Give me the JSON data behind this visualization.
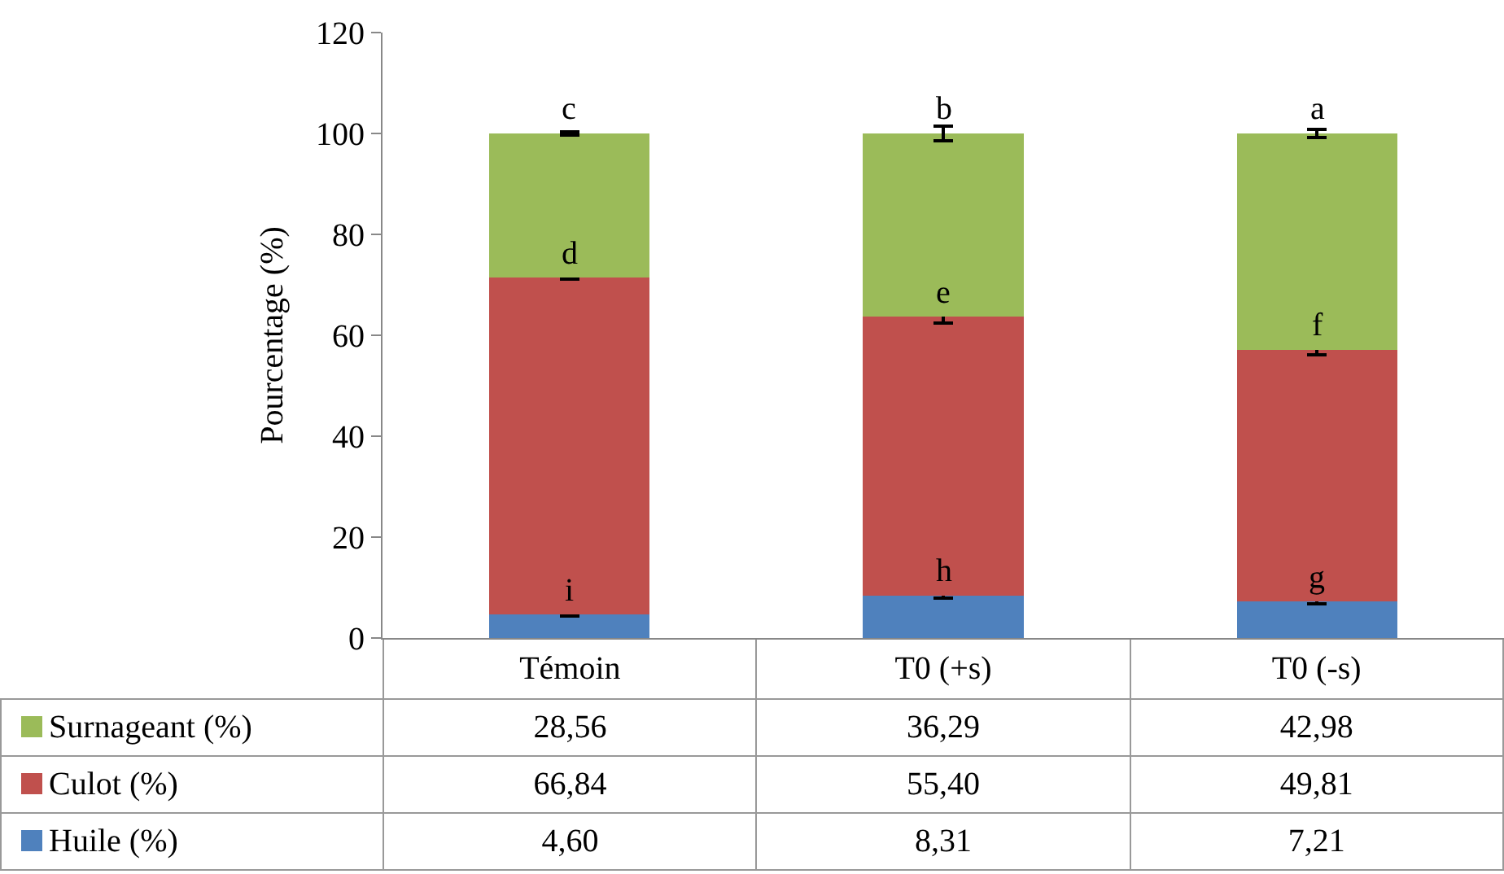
{
  "chart_data": {
    "type": "bar",
    "stacked": true,
    "ylabel": "Pourcentage (%)",
    "categories": [
      "Témoin",
      "T0 (+s)",
      "T0 (-s)"
    ],
    "ylim": [
      0,
      120
    ],
    "yticks": [
      0,
      20,
      40,
      60,
      80,
      100,
      120
    ],
    "grid": false,
    "legend": "bottom left",
    "tick_labels": "y",
    "series": [
      {
        "name": "Huile (%)",
        "color": "#4f81bd",
        "values": [
          4.6,
          8.31,
          7.21
        ],
        "value_labels": [
          "4,60",
          "8,31",
          "7,21"
        ],
        "errors": [
          0.2,
          0.4,
          0.4
        ]
      },
      {
        "name": "Culot (%)",
        "color": "#c0504d",
        "values": [
          66.84,
          55.4,
          49.81
        ],
        "value_labels": [
          "66,84",
          "55,40",
          "49,81"
        ],
        "errors": [
          0.3,
          1.3,
          0.9
        ]
      },
      {
        "name": "Surnageant (%)",
        "color": "#9bbb59",
        "values": [
          28.56,
          36.29,
          42.98
        ],
        "value_labels": [
          "28,56",
          "36,29",
          "42,98"
        ],
        "errors": [
          0.3,
          1.4,
          0.8
        ]
      }
    ],
    "annotations": [
      {
        "text": "i",
        "x": "Témoin",
        "y": 4.6
      },
      {
        "text": "d",
        "x": "Témoin",
        "y": 71.44
      },
      {
        "text": "c",
        "x": "Témoin",
        "y": 100
      },
      {
        "text": "h",
        "x": "T0 (+s)",
        "y": 8.31
      },
      {
        "text": "e",
        "x": "T0 (+s)",
        "y": 63.71
      },
      {
        "text": "b",
        "x": "T0 (+s)",
        "y": 100
      },
      {
        "text": "g",
        "x": "T0 (-s)",
        "y": 7.21
      },
      {
        "text": "f",
        "x": "T0 (-s)",
        "y": 57.02
      },
      {
        "text": "a",
        "x": "T0 (-s)",
        "y": 100
      }
    ]
  }
}
